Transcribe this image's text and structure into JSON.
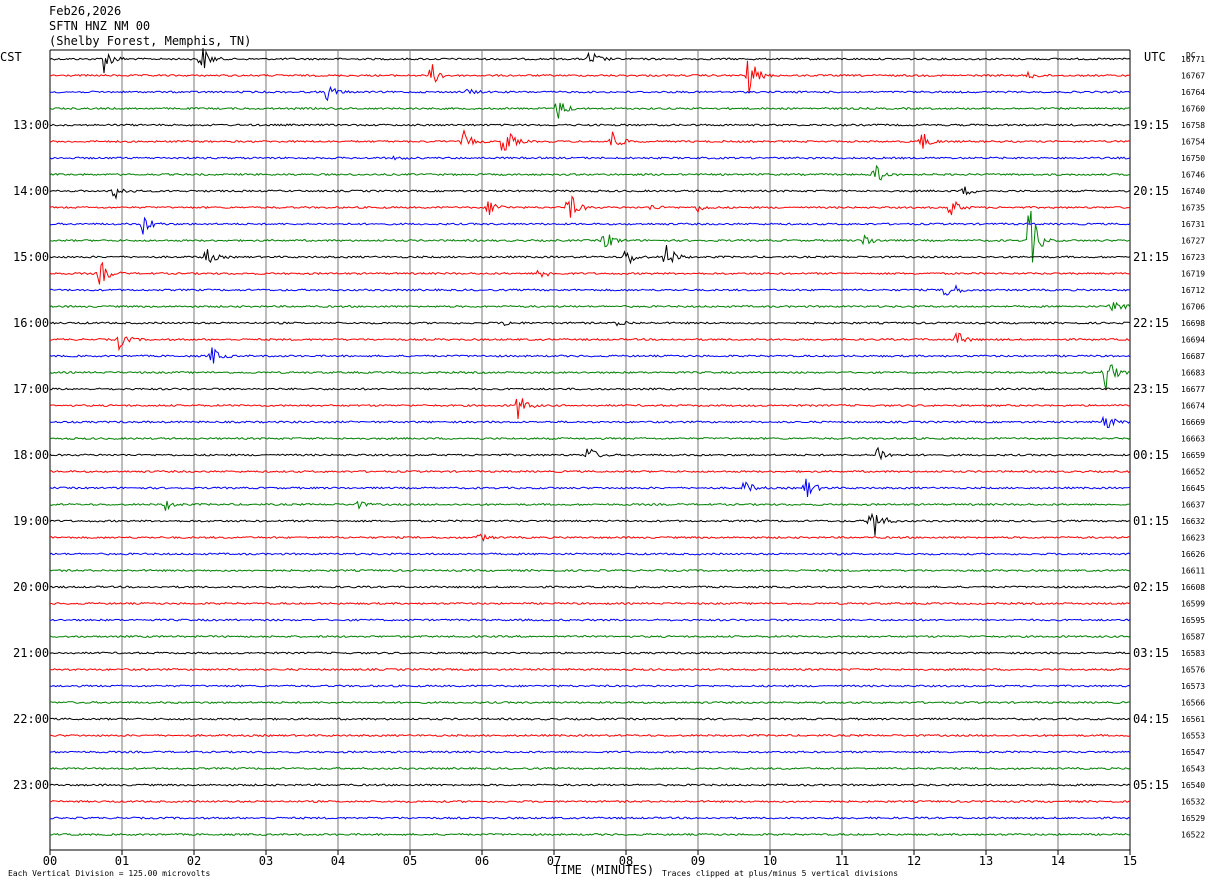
{
  "header": {
    "date": "Feb26,2026",
    "station": "SFTN HNZ NM 00",
    "location": "(Shelby Forest, Memphis, TN)"
  },
  "left_timezone": "CST",
  "right_timezone": "UTC",
  "dc_label": "DC",
  "footer": {
    "scale_note": "Each Vertical Division =  125.00 microvolts",
    "xlabel": "TIME (MINUTES)",
    "clip_note": "Traces clipped at plus/minus 5 vertical divisions"
  },
  "colors": {
    "trace_cycle": [
      "#000000",
      "#ff0000",
      "#0000ff",
      "#008000"
    ],
    "grid": "#7a7a7a"
  },
  "chart_data": {
    "type": "line",
    "subtype": "helicorder",
    "x": {
      "label": "TIME (MINUTES)",
      "range": [
        0,
        15
      ],
      "ticks": [
        "00",
        "01",
        "02",
        "03",
        "04",
        "05",
        "06",
        "07",
        "08",
        "09",
        "10",
        "11",
        "12",
        "13",
        "14",
        "15"
      ]
    },
    "num_traces": 48,
    "minutes_per_trace": 15,
    "left_labels": [
      {
        "row": 4,
        "text": "13:00"
      },
      {
        "row": 8,
        "text": "14:00"
      },
      {
        "row": 12,
        "text": "15:00"
      },
      {
        "row": 16,
        "text": "16:00"
      },
      {
        "row": 20,
        "text": "17:00"
      },
      {
        "row": 24,
        "text": "18:00"
      },
      {
        "row": 28,
        "text": "19:00"
      },
      {
        "row": 32,
        "text": "20:00"
      },
      {
        "row": 36,
        "text": "21:00"
      },
      {
        "row": 40,
        "text": "22:00"
      },
      {
        "row": 44,
        "text": "23:00"
      }
    ],
    "right_labels": [
      {
        "row": 4,
        "text": "19:15"
      },
      {
        "row": 8,
        "text": "20:15"
      },
      {
        "row": 12,
        "text": "21:15"
      },
      {
        "row": 16,
        "text": "22:15"
      },
      {
        "row": 20,
        "text": "23:15"
      },
      {
        "row": 24,
        "text": "00:15"
      },
      {
        "row": 28,
        "text": "01:15"
      },
      {
        "row": 32,
        "text": "02:15"
      },
      {
        "row": 36,
        "text": "03:15"
      },
      {
        "row": 40,
        "text": "04:15"
      },
      {
        "row": 44,
        "text": "05:15"
      }
    ],
    "dc_values": [
      "16771",
      "16767",
      "16764",
      "16760",
      "16758",
      "16754",
      "16750",
      "16746",
      "16740",
      "16735",
      "16731",
      "16727",
      "16723",
      "16719",
      "16712",
      "16706",
      "16698",
      "16694",
      "16687",
      "16683",
      "16677",
      "16674",
      "16669",
      "16663",
      "16659",
      "16652",
      "16645",
      "16637",
      "16632",
      "16623",
      "16626",
      "16611",
      "16608",
      "16599",
      "16595",
      "16587",
      "16583",
      "16576",
      "16573",
      "16566",
      "16561",
      "16553",
      "16547",
      "16543",
      "16540",
      "16532",
      "16529",
      "16522"
    ],
    "events": [
      {
        "row": 0,
        "minute": 0.75,
        "amp": 14
      },
      {
        "row": 0,
        "minute": 2.1,
        "amp": 16
      },
      {
        "row": 0,
        "minute": 7.5,
        "amp": 10
      },
      {
        "row": 1,
        "minute": 5.3,
        "amp": 12
      },
      {
        "row": 1,
        "minute": 9.7,
        "amp": 22
      },
      {
        "row": 1,
        "minute": 13.6,
        "amp": 4
      },
      {
        "row": 2,
        "minute": 3.85,
        "amp": 9
      },
      {
        "row": 2,
        "minute": 5.8,
        "amp": 3
      },
      {
        "row": 3,
        "minute": 7.05,
        "amp": 12
      },
      {
        "row": 5,
        "minute": 5.75,
        "amp": 10
      },
      {
        "row": 5,
        "minute": 6.3,
        "amp": 20
      },
      {
        "row": 5,
        "minute": 7.8,
        "amp": 13
      },
      {
        "row": 5,
        "minute": 12.1,
        "amp": 11
      },
      {
        "row": 6,
        "minute": 4.8,
        "amp": 2
      },
      {
        "row": 7,
        "minute": 11.45,
        "amp": 13
      },
      {
        "row": 8,
        "minute": 0.9,
        "amp": 9
      },
      {
        "row": 8,
        "minute": 12.7,
        "amp": 5
      },
      {
        "row": 9,
        "minute": 6.1,
        "amp": 10
      },
      {
        "row": 9,
        "minute": 7.2,
        "amp": 18
      },
      {
        "row": 9,
        "minute": 8.35,
        "amp": 3
      },
      {
        "row": 9,
        "minute": 9.0,
        "amp": 4
      },
      {
        "row": 9,
        "minute": 12.5,
        "amp": 12
      },
      {
        "row": 10,
        "minute": 1.3,
        "amp": 12
      },
      {
        "row": 11,
        "minute": 7.7,
        "amp": 12
      },
      {
        "row": 11,
        "minute": 11.3,
        "amp": 8
      },
      {
        "row": 11,
        "minute": 13.6,
        "amp": 40
      },
      {
        "row": 12,
        "minute": 2.15,
        "amp": 11
      },
      {
        "row": 12,
        "minute": 8.0,
        "amp": 12
      },
      {
        "row": 12,
        "minute": 8.55,
        "amp": 16
      },
      {
        "row": 13,
        "minute": 0.7,
        "amp": 14
      },
      {
        "row": 13,
        "minute": 6.8,
        "amp": 7
      },
      {
        "row": 14,
        "minute": 12.45,
        "amp": 16
      },
      {
        "row": 15,
        "minute": 14.75,
        "amp": 10
      },
      {
        "row": 16,
        "minute": 6.3,
        "amp": 3
      },
      {
        "row": 16,
        "minute": 7.9,
        "amp": 4
      },
      {
        "row": 17,
        "minute": 0.95,
        "amp": 10
      },
      {
        "row": 17,
        "minute": 12.6,
        "amp": 8
      },
      {
        "row": 18,
        "minute": 2.25,
        "amp": 10
      },
      {
        "row": 19,
        "minute": 14.65,
        "amp": 24
      },
      {
        "row": 21,
        "minute": 6.5,
        "amp": 14
      },
      {
        "row": 22,
        "minute": 14.65,
        "amp": 10
      },
      {
        "row": 24,
        "minute": 7.45,
        "amp": 12
      },
      {
        "row": 24,
        "minute": 11.5,
        "amp": 10
      },
      {
        "row": 26,
        "minute": 9.65,
        "amp": 8
      },
      {
        "row": 26,
        "minute": 10.5,
        "amp": 12
      },
      {
        "row": 27,
        "minute": 1.6,
        "amp": 6
      },
      {
        "row": 27,
        "minute": 4.25,
        "amp": 5
      },
      {
        "row": 28,
        "minute": 11.4,
        "amp": 28
      },
      {
        "row": 29,
        "minute": 5.95,
        "amp": 5
      }
    ]
  }
}
